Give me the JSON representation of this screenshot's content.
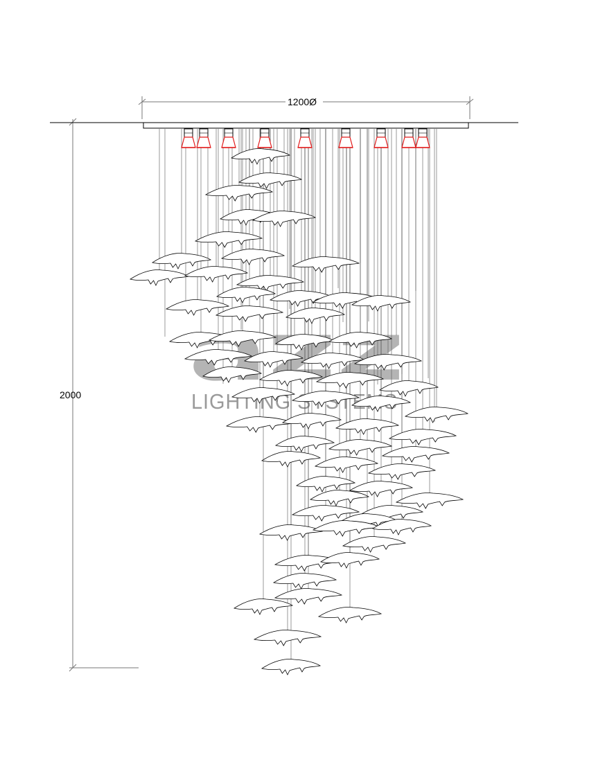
{
  "dimensions": {
    "width_label": "1200Ø",
    "height_label": "2000"
  },
  "watermark": {
    "logo_text": "azz",
    "subtitle": "LIGHTING SYSTEMS"
  },
  "colors": {
    "line": "#000000",
    "dimension_line": "#777777",
    "suspension_wire": "#555555",
    "lamp_accent": "#e11b1b",
    "watermark": "#b4b4b4"
  },
  "fixture": {
    "lamp_count": 9
  }
}
